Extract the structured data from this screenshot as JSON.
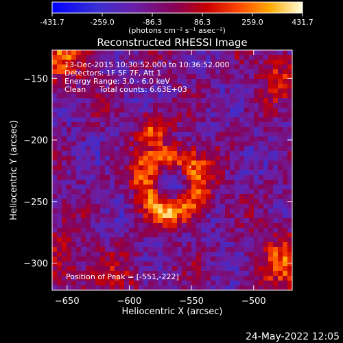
{
  "chart_data": {
    "type": "heatmap",
    "title": "Reconstructed RHESSI Image",
    "xlabel": "Heliocentric X (arcsec)",
    "ylabel": "Heliocentric Y (arcsec)",
    "xlim": [
      -662,
      -469
    ],
    "ylim": [
      -322,
      -127
    ],
    "xticks": [
      -650,
      -600,
      -550,
      -500
    ],
    "yticks": [
      -150,
      -200,
      -250,
      -300
    ],
    "colorbar": {
      "ticks": [
        "-431.7",
        "-259.0",
        "-86.3",
        "86.3",
        "259.0",
        "431.7"
      ],
      "unit": "(photons cm⁻² s⁻¹ asec⁻²)",
      "min": -431.7,
      "max": 431.7
    },
    "annotations": {
      "time_range": "13-Dec-2015 10:30:52.000 to 10:36:52.000",
      "detectors": "Detectors: 1F 5F 7F, Att 1",
      "energy": "Energy Range: 3.0 - 6.0 keV",
      "clean": "Clean",
      "total_counts": "Total counts: 6.63E+03",
      "peak": "Position of Peak = [-551,-222]"
    },
    "peak": {
      "x": -551,
      "y": -222
    },
    "grid": false
  },
  "footer": {
    "date": "24-May-2022 12:05"
  },
  "colors": {
    "background": "#000000",
    "text": "#ffffff"
  }
}
